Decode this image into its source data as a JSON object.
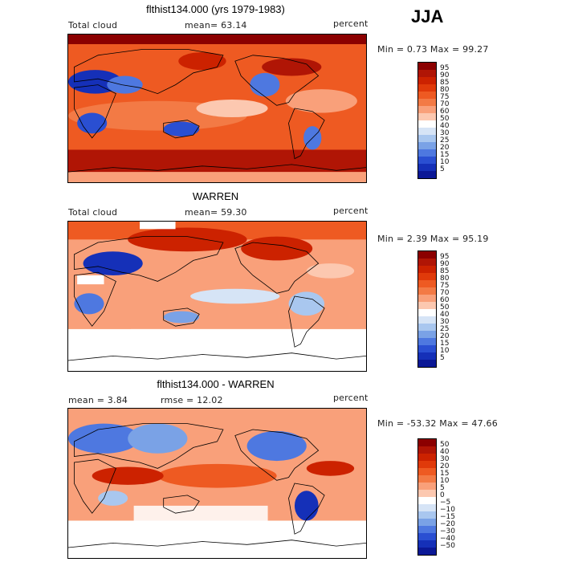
{
  "season_label": "JJA",
  "panels": [
    {
      "title": "flthist134.000 (yrs 1979-1983)",
      "left_label": "Total cloud",
      "center_label": "mean=  63.14",
      "right_label": "percent",
      "range_label": "Min =    0.73 Max =   99.27",
      "colorbar": {
        "ticks": [
          "95",
          "90",
          "85",
          "80",
          "75",
          "70",
          "60",
          "50",
          "40",
          "30",
          "25",
          "20",
          "15",
          "10",
          "5"
        ],
        "colors": [
          "#8b0000",
          "#b01505",
          "#cc2200",
          "#e03a0a",
          "#ee5a22",
          "#f37a45",
          "#f9a07a",
          "#fcc8b0",
          "#ffffff",
          "#d6e4f6",
          "#a9c7ef",
          "#7aa2e6",
          "#4e78e0",
          "#2a4fd2",
          "#1530b8",
          "#0b1896"
        ]
      },
      "map_style": "model"
    },
    {
      "title": "WARREN",
      "left_label": "Total cloud",
      "center_label": "mean=  59.30",
      "right_label": "percent",
      "range_label": "Min =    2.39 Max =   95.19",
      "colorbar": {
        "ticks": [
          "95",
          "90",
          "85",
          "80",
          "75",
          "70",
          "60",
          "50",
          "40",
          "30",
          "25",
          "20",
          "15",
          "10",
          "5"
        ],
        "colors": [
          "#8b0000",
          "#b01505",
          "#cc2200",
          "#e03a0a",
          "#ee5a22",
          "#f37a45",
          "#f9a07a",
          "#fcc8b0",
          "#ffffff",
          "#d6e4f6",
          "#a9c7ef",
          "#7aa2e6",
          "#4e78e0",
          "#2a4fd2",
          "#1530b8",
          "#0b1896"
        ]
      },
      "map_style": "obs"
    },
    {
      "title": "flthist134.000 - WARREN",
      "left_label": "mean =    3.84",
      "center_label": "rmse =   12.02",
      "right_label": "percent",
      "range_label": "Min = -53.32 Max =   47.66",
      "colorbar": {
        "ticks": [
          "50",
          "40",
          "30",
          "20",
          "15",
          "10",
          "5",
          "0",
          "−5",
          "−10",
          "−15",
          "−20",
          "−30",
          "−40",
          "−50"
        ],
        "colors": [
          "#8b0000",
          "#b01505",
          "#cc2200",
          "#e03a0a",
          "#ee5a22",
          "#f37a45",
          "#f9a07a",
          "#fcc8b0",
          "#ffffff",
          "#d6e4f6",
          "#a9c7ef",
          "#7aa2e6",
          "#4e78e0",
          "#2a4fd2",
          "#1530b8",
          "#0b1896"
        ]
      },
      "map_style": "diff"
    }
  ]
}
